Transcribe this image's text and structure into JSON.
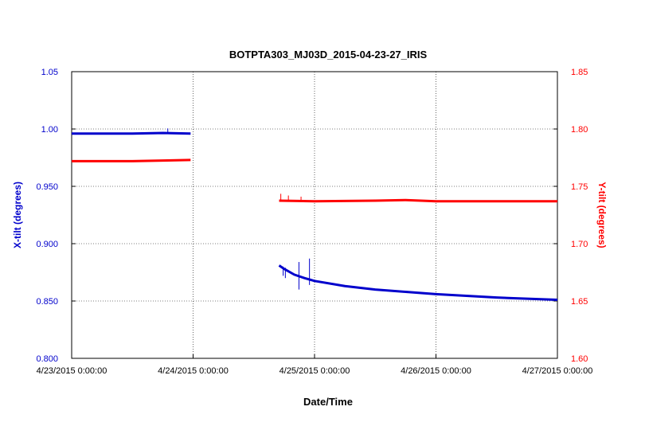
{
  "chart_data": {
    "type": "line",
    "title": "BOTPTA303_MJ03D_2015-04-23-27_IRIS",
    "xlabel": "Date/Time",
    "ylabel_left": "X-tilt (degrees)",
    "ylabel_right": "Y-tilt (degrees)",
    "x_range": [
      "2015-04-23T00:00:00",
      "2015-04-27T00:00:00"
    ],
    "x_ticks": [
      {
        "t": 0,
        "label": "4/23/2015 0:00:00"
      },
      {
        "t": 1,
        "label": "4/24/2015 0:00:00"
      },
      {
        "t": 2,
        "label": "4/25/2015 0:00:00"
      },
      {
        "t": 3,
        "label": "4/26/2015 0:00:00"
      },
      {
        "t": 4,
        "label": "4/27/2015 0:00:00"
      }
    ],
    "y_left": {
      "range": [
        0.8,
        1.05
      ],
      "ticks": [
        {
          "v": 0.8,
          "label": "0.800"
        },
        {
          "v": 0.85,
          "label": "0.850"
        },
        {
          "v": 0.9,
          "label": "0.900"
        },
        {
          "v": 0.95,
          "label": "0.950"
        },
        {
          "v": 1.0,
          "label": "1.00"
        },
        {
          "v": 1.05,
          "label": "1.05"
        }
      ],
      "color": "#0000cc"
    },
    "y_right": {
      "range": [
        1.6,
        1.85
      ],
      "ticks": [
        {
          "v": 1.6,
          "label": "1.60"
        },
        {
          "v": 1.65,
          "label": "1.65"
        },
        {
          "v": 1.7,
          "label": "1.70"
        },
        {
          "v": 1.75,
          "label": "1.75"
        },
        {
          "v": 1.8,
          "label": "1.80"
        },
        {
          "v": 1.85,
          "label": "1.85"
        }
      ],
      "color": "#ff0000"
    },
    "grid": true,
    "series": [
      {
        "axis": "left",
        "color": "#0000cc",
        "points": [
          [
            "2015-04-23T00:00:00",
            0.996
          ],
          [
            "2015-04-23T12:00:00",
            0.996
          ],
          [
            "2015-04-23T18:00:00",
            0.9965
          ],
          [
            "2015-04-23T23:30:00",
            0.996
          ],
          null,
          [
            "2015-04-24T17:00:00",
            0.881
          ],
          [
            "2015-04-24T18:00:00",
            0.878
          ],
          [
            "2015-04-24T20:00:00",
            0.873
          ],
          [
            "2015-04-24T22:00:00",
            0.87
          ],
          [
            "2015-04-25T00:00:00",
            0.8675
          ],
          [
            "2015-04-25T06:00:00",
            0.863
          ],
          [
            "2015-04-25T12:00:00",
            0.86
          ],
          [
            "2015-04-25T18:00:00",
            0.858
          ],
          [
            "2015-04-26T00:00:00",
            0.856
          ],
          [
            "2015-04-26T06:00:00",
            0.8545
          ],
          [
            "2015-04-26T12:00:00",
            0.853
          ],
          [
            "2015-04-26T18:00:00",
            0.852
          ],
          [
            "2015-04-27T00:00:00",
            0.851
          ]
        ]
      },
      {
        "axis": "right",
        "color": "#ff0000",
        "points": [
          [
            "2015-04-23T00:00:00",
            1.772
          ],
          [
            "2015-04-23T12:00:00",
            1.772
          ],
          [
            "2015-04-23T18:00:00",
            1.7725
          ],
          [
            "2015-04-23T23:30:00",
            1.773
          ],
          null,
          [
            "2015-04-24T17:00:00",
            1.7375
          ],
          [
            "2015-04-25T00:00:00",
            1.737
          ],
          [
            "2015-04-25T12:00:00",
            1.7375
          ],
          [
            "2015-04-25T18:00:00",
            1.738
          ],
          [
            "2015-04-26T00:00:00",
            1.737
          ],
          [
            "2015-04-26T12:00:00",
            1.737
          ],
          [
            "2015-04-27T00:00:00",
            1.737
          ]
        ]
      }
    ],
    "spikes": [
      {
        "axis": "left",
        "t": "2015-04-24T17:48:00",
        "min": 0.872,
        "max": 0.88
      },
      {
        "axis": "left",
        "t": "2015-04-24T18:14:00",
        "min": 0.87,
        "max": 0.879
      },
      {
        "axis": "left",
        "t": "2015-04-24T20:55:00",
        "min": 0.86,
        "max": 0.884
      },
      {
        "axis": "left",
        "t": "2015-04-24T23:00:00",
        "min": 0.864,
        "max": 0.887
      },
      {
        "axis": "left",
        "t": "2015-04-23T19:00:00",
        "min": 0.996,
        "max": 1.0005
      },
      {
        "axis": "right",
        "t": "2015-04-24T17:20:00",
        "min": 1.7365,
        "max": 1.7435
      },
      {
        "axis": "right",
        "t": "2015-04-24T18:50:00",
        "min": 1.7365,
        "max": 1.742
      },
      {
        "axis": "right",
        "t": "2015-04-24T21:20:00",
        "min": 1.7365,
        "max": 1.741
      }
    ]
  }
}
